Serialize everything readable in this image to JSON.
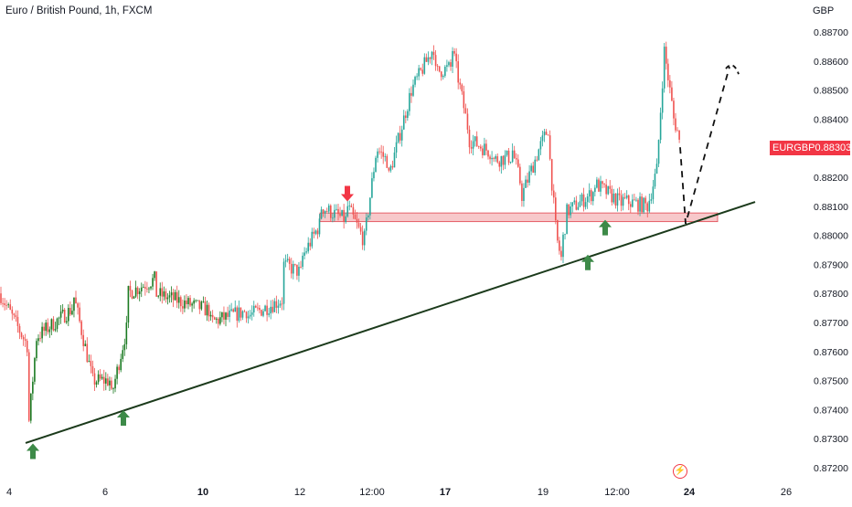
{
  "header": {
    "title": "Euro / British Pound, 1h, FXCM",
    "currency": "GBP"
  },
  "price_badge": {
    "symbol": "EURGBP",
    "value": "0.88303"
  },
  "colors": {
    "up": "#26a69a",
    "up_dark": "#1b7a22",
    "down": "#ef5350",
    "trendline": "#1b3a1b",
    "zone_fill": "#f4b6b8",
    "zone_stroke": "#e0454f",
    "arrow_up": "#3d8a48",
    "arrow_down": "#f23645",
    "badge": "#f23645"
  },
  "chart_data": {
    "type": "candlestick",
    "title": "Euro / British Pound, 1h, FXCM",
    "ylabel": "GBP",
    "ylim": [
      0.87175,
      0.88775
    ],
    "y_ticks": [
      "0.88700",
      "0.88600",
      "0.88500",
      "0.88400",
      "0.88300",
      "0.88200",
      "0.88100",
      "0.88000",
      "0.87900",
      "0.87800",
      "0.87700",
      "0.87600",
      "0.87500",
      "0.87400",
      "0.87300",
      "0.87200"
    ],
    "x_ticks": [
      "4",
      "6",
      "10",
      "12",
      "12:00",
      "17",
      "19",
      "12:00",
      "24",
      "26"
    ],
    "x_tick_bold": [
      false,
      false,
      true,
      false,
      false,
      true,
      false,
      false,
      true,
      false
    ],
    "last_price": 0.88303,
    "path_anchors": [
      [
        0.8786,
        0.878
      ],
      [
        0.8762,
        0.873
      ],
      [
        0.8765,
        0.8765
      ],
      [
        0.8775,
        0.878
      ],
      [
        0.8752,
        0.875
      ],
      [
        0.875,
        0.8742
      ],
      [
        0.877,
        0.878
      ],
      [
        0.8785,
        0.878
      ],
      [
        0.8774,
        0.877
      ],
      [
        0.8774,
        0.8772
      ],
      [
        0.8778,
        0.879
      ],
      [
        0.8787,
        0.8792
      ],
      [
        0.8804,
        0.881
      ],
      [
        0.8805,
        0.881
      ],
      [
        0.8799,
        0.8795
      ],
      [
        0.883,
        0.883
      ],
      [
        0.8825,
        0.882
      ],
      [
        0.885,
        0.885
      ],
      [
        0.8865,
        0.8856
      ],
      [
        0.8858,
        0.8864
      ],
      [
        0.8835,
        0.8833
      ],
      [
        0.8828,
        0.8826
      ],
      [
        0.8827,
        0.883
      ],
      [
        0.8817,
        0.8813
      ],
      [
        0.883,
        0.883
      ],
      [
        0.8837,
        0.8832
      ],
      [
        0.8802,
        0.88
      ],
      [
        0.8792,
        0.8795
      ],
      [
        0.8807,
        0.8808
      ],
      [
        0.8815,
        0.8818
      ],
      [
        0.8811,
        0.8812
      ],
      [
        0.881,
        0.8812
      ],
      [
        0.8822,
        0.882
      ],
      [
        0.886,
        0.8865
      ],
      [
        0.8845,
        0.8842
      ],
      [
        0.8835,
        0.8833
      ],
      [
        0.88303,
        0.88303
      ]
    ],
    "trendline": {
      "from": [
        "4",
        0.87285
      ],
      "to": [
        "26",
        0.88115
      ]
    },
    "supply_demand_zone": {
      "top": 0.88077,
      "bottom": 0.88047
    },
    "projection": [
      0.88303,
      0.8804,
      0.8858
    ],
    "markers": [
      {
        "type": "up",
        "price": 0.87255
      },
      {
        "type": "up",
        "price": 0.8737
      },
      {
        "type": "down",
        "price": 0.88145
      },
      {
        "type": "up",
        "price": 0.87905
      },
      {
        "type": "up",
        "price": 0.88025
      }
    ]
  }
}
